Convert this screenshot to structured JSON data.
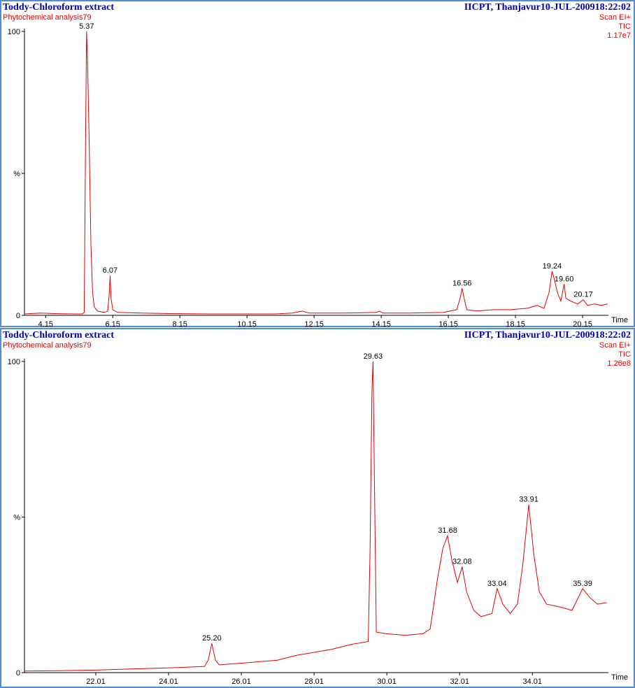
{
  "chart_data": [
    {
      "type": "line",
      "title": "Toddy-Chloroform extract",
      "subtitle": "Phytochemical analysis79",
      "header_right": "IICPT, Thanjavur10-JUL-200918:22:02",
      "scan": "Scan EI+",
      "trace": "TIC",
      "intensity": "1.17e7",
      "x_label": "Time",
      "xlim": [
        3.52,
        20.92
      ],
      "xticks": [
        4.15,
        6.15,
        8.15,
        10.15,
        12.15,
        14.15,
        16.15,
        18.15,
        20.15
      ],
      "ylim": [
        0,
        100
      ],
      "yticks": [
        0,
        {
          "value": 50,
          "label": "%"
        },
        100
      ],
      "x": [
        3.52,
        4.0,
        4.5,
        5.0,
        5.25,
        5.3,
        5.34,
        5.37,
        5.4,
        5.45,
        5.5,
        5.55,
        5.6,
        5.7,
        5.9,
        6.0,
        6.05,
        6.07,
        6.1,
        6.15,
        6.3,
        7,
        8,
        9,
        10,
        11,
        11.5,
        11.8,
        12,
        13,
        14,
        14.1,
        14.2,
        15,
        16,
        16.4,
        16.5,
        16.56,
        16.62,
        16.7,
        17,
        17.5,
        18,
        18.5,
        18.8,
        19.0,
        19.15,
        19.24,
        19.3,
        19.4,
        19.5,
        19.55,
        19.6,
        19.65,
        19.8,
        20.0,
        20.17,
        20.3,
        20.5,
        20.7,
        20.9
      ],
      "series": [
        {
          "color": "#e00000",
          "values": [
            0.5,
            0.8,
            0.6,
            0.5,
            0.5,
            1,
            60,
            100,
            90,
            60,
            25,
            8,
            3,
            1.5,
            1,
            1.5,
            8,
            14,
            6,
            2,
            1,
            0.8,
            0.6,
            0.5,
            0.5,
            0.5,
            0.8,
            1.5,
            0.8,
            0.8,
            1,
            1.5,
            0.8,
            0.8,
            1,
            2,
            6,
            9.5,
            6,
            2,
            1.5,
            2,
            2,
            2.5,
            3.5,
            2.5,
            8,
            15.5,
            13,
            8,
            5,
            8,
            11,
            6,
            5,
            4,
            5.5,
            3.5,
            4,
            3.5,
            4
          ]
        }
      ],
      "annotations": [
        {
          "text": "5.37",
          "x": 5.37,
          "y": 100
        },
        {
          "text": "6.07",
          "x": 6.07,
          "y": 14
        },
        {
          "text": "16.56",
          "x": 16.56,
          "y": 9.5
        },
        {
          "text": "19.24",
          "x": 19.24,
          "y": 15.5
        },
        {
          "text": "19.60",
          "x": 19.6,
          "y": 11
        },
        {
          "text": "20.17",
          "x": 20.17,
          "y": 5.5
        }
      ]
    },
    {
      "type": "line",
      "title": "Toddy-Chloroform extract",
      "subtitle": "Phytochemical analysis79",
      "header_right": "IICPT, Thanjavur10-JUL-200918:22:02",
      "scan": "Scan EI+",
      "trace": "TIC",
      "intensity": "1.26e8",
      "x_label": "Time",
      "xlim": [
        20.05,
        36.1
      ],
      "xticks": [
        22.01,
        24.01,
        26.01,
        28.01,
        30.01,
        32.01,
        34.01
      ],
      "ylim": [
        0,
        100
      ],
      "yticks": [
        0,
        {
          "value": 50,
          "label": "%"
        },
        100
      ],
      "x": [
        20.05,
        21,
        22,
        23,
        24,
        25,
        25.1,
        25.2,
        25.3,
        25.4,
        26,
        27,
        27.5,
        28,
        28.5,
        29,
        29.5,
        29.55,
        29.6,
        29.63,
        29.67,
        29.72,
        30,
        30.5,
        31,
        31.2,
        31.4,
        31.55,
        31.68,
        31.8,
        31.95,
        32.08,
        32.2,
        32.4,
        32.6,
        32.9,
        33.04,
        33.2,
        33.4,
        33.6,
        33.75,
        33.91,
        34.05,
        34.2,
        34.4,
        34.8,
        35.1,
        35.39,
        35.6,
        35.8,
        36.05
      ],
      "series": [
        {
          "color": "#e00000",
          "values": [
            0.5,
            0.6,
            0.8,
            1.2,
            1.5,
            2,
            4,
            9.4,
            4,
            2.5,
            3,
            4,
            5.5,
            6.5,
            7.5,
            9,
            10,
            40,
            90,
            100,
            60,
            13,
            12.5,
            12,
            12.5,
            14,
            30,
            40,
            44,
            36,
            29,
            34,
            26,
            20,
            18,
            19,
            27,
            22,
            19,
            22,
            35,
            54,
            38,
            26,
            22,
            21,
            20,
            27,
            24,
            22,
            22.5
          ]
        }
      ],
      "annotations": [
        {
          "text": "25.20",
          "x": 25.2,
          "y": 9.4
        },
        {
          "text": "29.63",
          "x": 29.63,
          "y": 100
        },
        {
          "text": "31.68",
          "x": 31.68,
          "y": 44
        },
        {
          "text": "32.08",
          "x": 32.08,
          "y": 34
        },
        {
          "text": "33.04",
          "x": 33.04,
          "y": 27
        },
        {
          "text": "33.91",
          "x": 33.91,
          "y": 54
        },
        {
          "text": "35.39",
          "x": 35.39,
          "y": 27
        }
      ]
    }
  ]
}
